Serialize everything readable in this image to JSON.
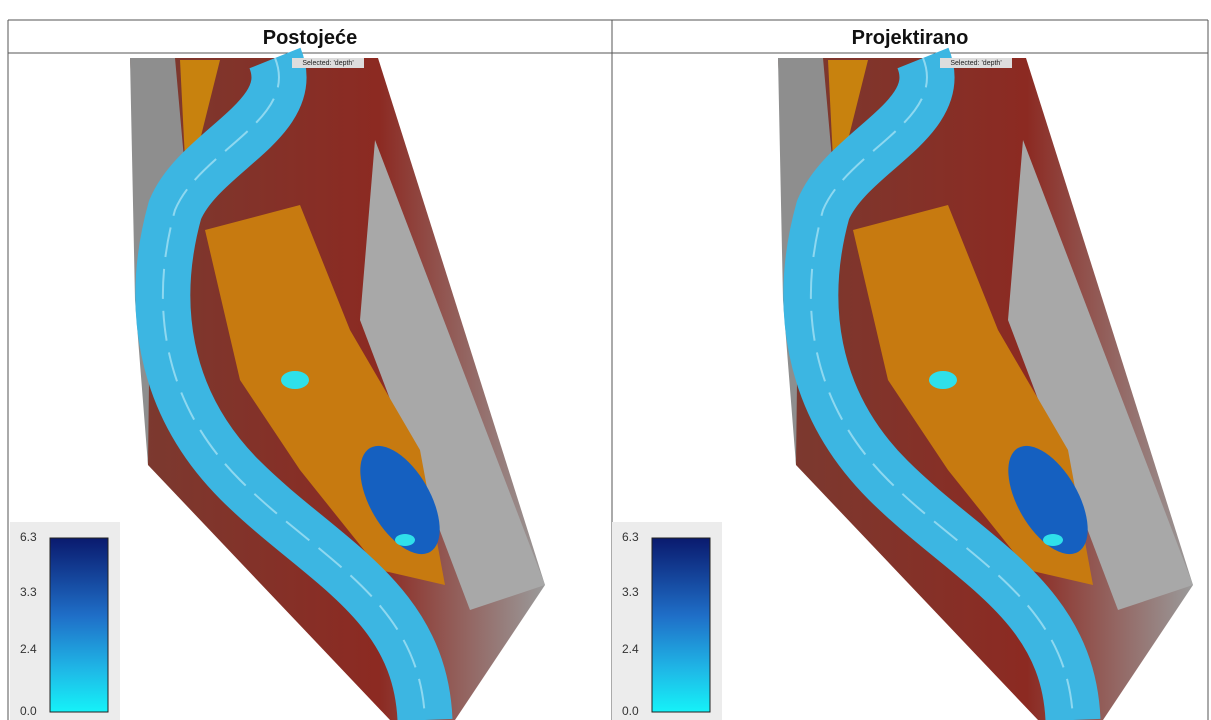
{
  "panels": [
    {
      "title": "Postojeće",
      "selected": "Selected: 'depth'",
      "legend": [
        "6.3",
        "3.3",
        "2.4",
        "0.0"
      ]
    },
    {
      "title": "Projektirano",
      "selected": "Selected: 'depth'",
      "legend": [
        "6.3",
        "3.3",
        "2.4",
        "0.0"
      ]
    }
  ]
}
